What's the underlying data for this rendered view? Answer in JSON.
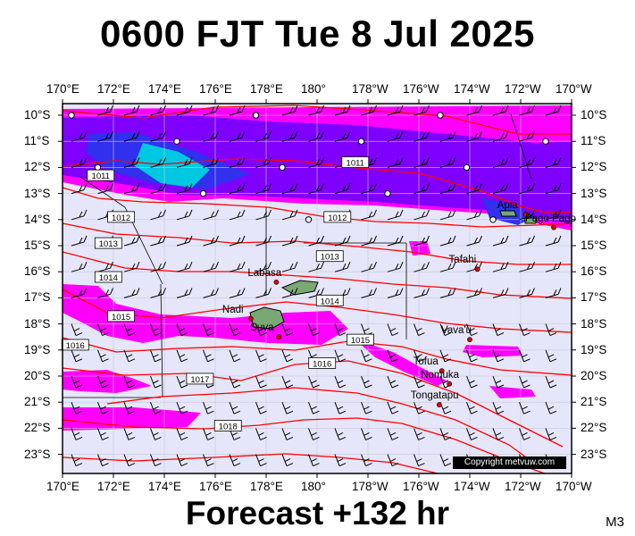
{
  "title": "0600 FJT Tue 8 Jul 2025",
  "footer": "Forecast +132 hr",
  "model_tag": "M3",
  "copyright": "Copyright metvuw.com",
  "top_longitude_labels": [
    "170°E",
    "172°E",
    "174°E",
    "176°E",
    "178°E",
    "180°",
    "178°W",
    "176°W",
    "174°W",
    "172°W",
    "170°W"
  ],
  "bottom_longitude_labels": [
    "170°E",
    "172°E",
    "174°E",
    "176°E",
    "178°E",
    "180°",
    "178°W",
    "176°W",
    "174°W",
    "172°W",
    "170°W"
  ],
  "latitude_labels": [
    "10°S",
    "11°S",
    "12°S",
    "13°S",
    "14°S",
    "15°S",
    "16°S",
    "17°S",
    "18°S",
    "19°S",
    "20°S",
    "21°S",
    "22°S",
    "23°S"
  ],
  "isobar_labels": [
    {
      "text": "1011",
      "lon": -178.5,
      "lat": -11.8
    },
    {
      "text": "1011",
      "lon": 171.5,
      "lat": -12.3
    },
    {
      "text": "1012",
      "lon": -179.2,
      "lat": -13.9
    },
    {
      "text": "1012",
      "lon": 172.3,
      "lat": -13.9
    },
    {
      "text": "1013",
      "lon": 171.8,
      "lat": -14.9
    },
    {
      "text": "1013",
      "lon": -179.5,
      "lat": -15.4
    },
    {
      "text": "1014",
      "lon": 171.8,
      "lat": -16.2
    },
    {
      "text": "1014",
      "lon": -179.5,
      "lat": -17.1
    },
    {
      "text": "1015",
      "lon": 172.3,
      "lat": -17.7
    },
    {
      "text": "1015",
      "lon": -178.3,
      "lat": -18.6
    },
    {
      "text": "1016",
      "lon": 170.5,
      "lat": -18.8
    },
    {
      "text": "1016",
      "lon": -179.8,
      "lat": -19.5
    },
    {
      "text": "1017",
      "lon": 175.4,
      "lat": -20.1
    },
    {
      "text": "1018",
      "lon": 176.5,
      "lat": -21.9
    }
  ],
  "places": [
    {
      "name": "Labasa",
      "lon": 178.4,
      "lat": -16.4
    },
    {
      "name": "Nadi",
      "lon": 177.4,
      "lat": -17.8
    },
    {
      "name": "Suva",
      "lon": 178.5,
      "lat": -18.5
    },
    {
      "name": "Tafahi",
      "lon": -173.7,
      "lat": -15.9
    },
    {
      "name": "Apia",
      "lon": -171.8,
      "lat": -13.8
    },
    {
      "name": "Pago Pago",
      "lon": -170.7,
      "lat": -14.3
    },
    {
      "name": "Vava'u",
      "lon": -174.0,
      "lat": -18.6
    },
    {
      "name": "Tofua",
      "lon": -175.1,
      "lat": -19.8
    },
    {
      "name": "Nomuka",
      "lon": -174.8,
      "lat": -20.3
    },
    {
      "name": "Tongatapu",
      "lon": -175.2,
      "lat": -21.1
    }
  ],
  "colors": {
    "background": "#e6e6fa",
    "magenta": "#ff00ff",
    "purple": "#8000ff",
    "blue": "#3030ee",
    "cyan": "#00c8e0",
    "isobar": "#ff0000",
    "coast": "#000000"
  }
}
